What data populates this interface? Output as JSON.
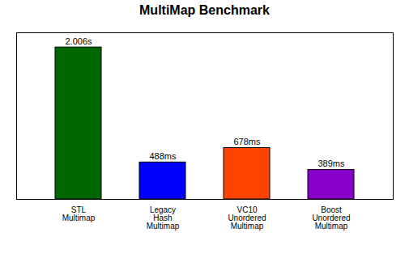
{
  "chart_data": {
    "type": "bar",
    "title": "MultiMap Benchmark",
    "categories": [
      "STL\nMultimap",
      "Legacy\nHash\nMultimap",
      "VC10\nUnordered\nMultimap",
      "Boost\nUnordered\nMultimap"
    ],
    "values": [
      2006,
      488,
      678,
      389
    ],
    "value_labels": [
      "2.006s",
      "488ms",
      "678ms",
      "389ms"
    ],
    "data_labels": true,
    "colors": [
      "#006600",
      "#0000FF",
      "#FF4400",
      "#8800CC"
    ],
    "ylim": [
      0,
      2200
    ],
    "yticks": [],
    "grid": false,
    "tick_labels": "x"
  }
}
